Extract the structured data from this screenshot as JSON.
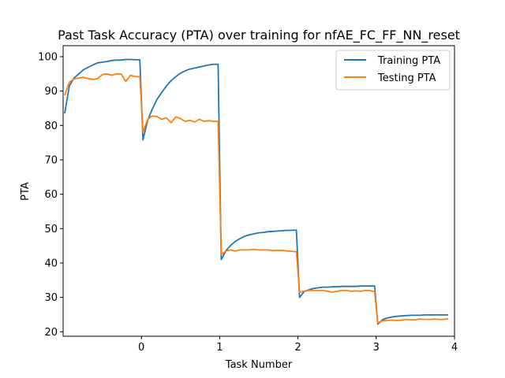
{
  "chart_data": {
    "type": "line",
    "title": "Past Task Accuracy (PTA) over training for nfAE_FC_FF_NN_reset",
    "xlabel": "Task Number",
    "ylabel": "PTA",
    "xlim": [
      -1.0,
      4.0
    ],
    "ylim": [
      18.7,
      103.2
    ],
    "xticks": [
      0,
      1,
      2,
      3,
      4
    ],
    "yticks": [
      20,
      30,
      40,
      50,
      60,
      70,
      80,
      90,
      100
    ],
    "grid": false,
    "legend_position": "upper right",
    "series": [
      {
        "name": "Training PTA",
        "color": "#1f77b4",
        "x": [
          -0.98,
          -0.92,
          -0.86,
          -0.8,
          -0.74,
          -0.68,
          -0.62,
          -0.56,
          -0.5,
          -0.44,
          -0.38,
          -0.32,
          -0.26,
          -0.2,
          -0.14,
          -0.08,
          -0.02,
          0.02,
          0.08,
          0.14,
          0.2,
          0.26,
          0.32,
          0.38,
          0.44,
          0.5,
          0.56,
          0.62,
          0.68,
          0.74,
          0.8,
          0.86,
          0.92,
          0.98,
          1.02,
          1.08,
          1.14,
          1.2,
          1.26,
          1.32,
          1.38,
          1.44,
          1.5,
          1.56,
          1.62,
          1.68,
          1.74,
          1.8,
          1.86,
          1.92,
          1.98,
          2.02,
          2.08,
          2.14,
          2.2,
          2.26,
          2.32,
          2.38,
          2.44,
          2.5,
          2.56,
          2.62,
          2.68,
          2.74,
          2.8,
          2.86,
          2.92,
          2.98,
          3.02,
          3.08,
          3.14,
          3.2,
          3.26,
          3.32,
          3.38,
          3.44,
          3.5,
          3.56,
          3.62,
          3.68,
          3.74,
          3.8,
          3.86,
          3.92
        ],
        "y": [
          83.5,
          91.5,
          93.8,
          95.0,
          96.2,
          96.9,
          97.6,
          98.2,
          98.4,
          98.6,
          98.9,
          99.0,
          99.0,
          99.2,
          99.2,
          99.1,
          99.1,
          75.8,
          81.5,
          84.8,
          87.6,
          89.6,
          91.5,
          93.0,
          94.2,
          95.2,
          95.9,
          96.4,
          96.7,
          97.0,
          97.3,
          97.6,
          97.8,
          97.8,
          41.0,
          43.6,
          45.1,
          46.3,
          47.1,
          47.8,
          48.2,
          48.5,
          48.8,
          48.9,
          49.1,
          49.2,
          49.3,
          49.4,
          49.5,
          49.5,
          49.6,
          30.0,
          31.7,
          32.2,
          32.6,
          32.8,
          33.0,
          33.0,
          33.1,
          33.1,
          33.2,
          33.2,
          33.2,
          33.2,
          33.3,
          33.3,
          33.3,
          33.3,
          22.2,
          23.5,
          24.0,
          24.3,
          24.5,
          24.6,
          24.7,
          24.8,
          24.8,
          24.8,
          24.9,
          24.9,
          24.9,
          24.9,
          24.9,
          24.9
        ]
      },
      {
        "name": "Testing PTA",
        "color": "#ff7f0e",
        "x": [
          -0.98,
          -0.92,
          -0.86,
          -0.8,
          -0.74,
          -0.68,
          -0.62,
          -0.56,
          -0.5,
          -0.44,
          -0.38,
          -0.32,
          -0.26,
          -0.2,
          -0.14,
          -0.08,
          -0.02,
          0.02,
          0.08,
          0.14,
          0.2,
          0.26,
          0.32,
          0.38,
          0.44,
          0.5,
          0.56,
          0.62,
          0.68,
          0.74,
          0.8,
          0.86,
          0.92,
          0.98,
          1.02,
          1.08,
          1.14,
          1.2,
          1.26,
          1.32,
          1.38,
          1.44,
          1.5,
          1.56,
          1.62,
          1.68,
          1.74,
          1.8,
          1.86,
          1.92,
          1.98,
          2.02,
          2.08,
          2.14,
          2.2,
          2.26,
          2.32,
          2.38,
          2.44,
          2.5,
          2.56,
          2.62,
          2.68,
          2.74,
          2.8,
          2.86,
          2.92,
          2.98,
          3.02,
          3.08,
          3.14,
          3.2,
          3.26,
          3.32,
          3.38,
          3.44,
          3.5,
          3.56,
          3.62,
          3.68,
          3.74,
          3.8,
          3.86,
          3.92
        ],
        "y": [
          88.8,
          92.6,
          93.5,
          93.8,
          94.0,
          93.6,
          93.4,
          93.6,
          94.8,
          95.0,
          94.6,
          95.0,
          95.0,
          92.8,
          94.6,
          94.2,
          94.2,
          78.0,
          81.8,
          82.8,
          82.6,
          81.8,
          82.2,
          80.8,
          82.5,
          82.0,
          81.2,
          81.5,
          81.0,
          81.8,
          81.2,
          81.4,
          81.2,
          81.2,
          42.5,
          43.5,
          43.8,
          43.5,
          43.8,
          43.8,
          43.8,
          44.0,
          43.8,
          43.8,
          43.8,
          43.6,
          43.7,
          43.7,
          43.5,
          43.4,
          43.3,
          31.5,
          31.8,
          32.0,
          32.0,
          32.0,
          32.0,
          31.8,
          31.5,
          31.8,
          32.0,
          32.0,
          31.8,
          31.9,
          31.8,
          32.0,
          32.0,
          31.6,
          22.6,
          23.2,
          23.3,
          23.4,
          23.3,
          23.4,
          23.6,
          23.5,
          23.5,
          23.7,
          23.6,
          23.6,
          23.7,
          23.6,
          23.6,
          23.8
        ]
      }
    ]
  }
}
